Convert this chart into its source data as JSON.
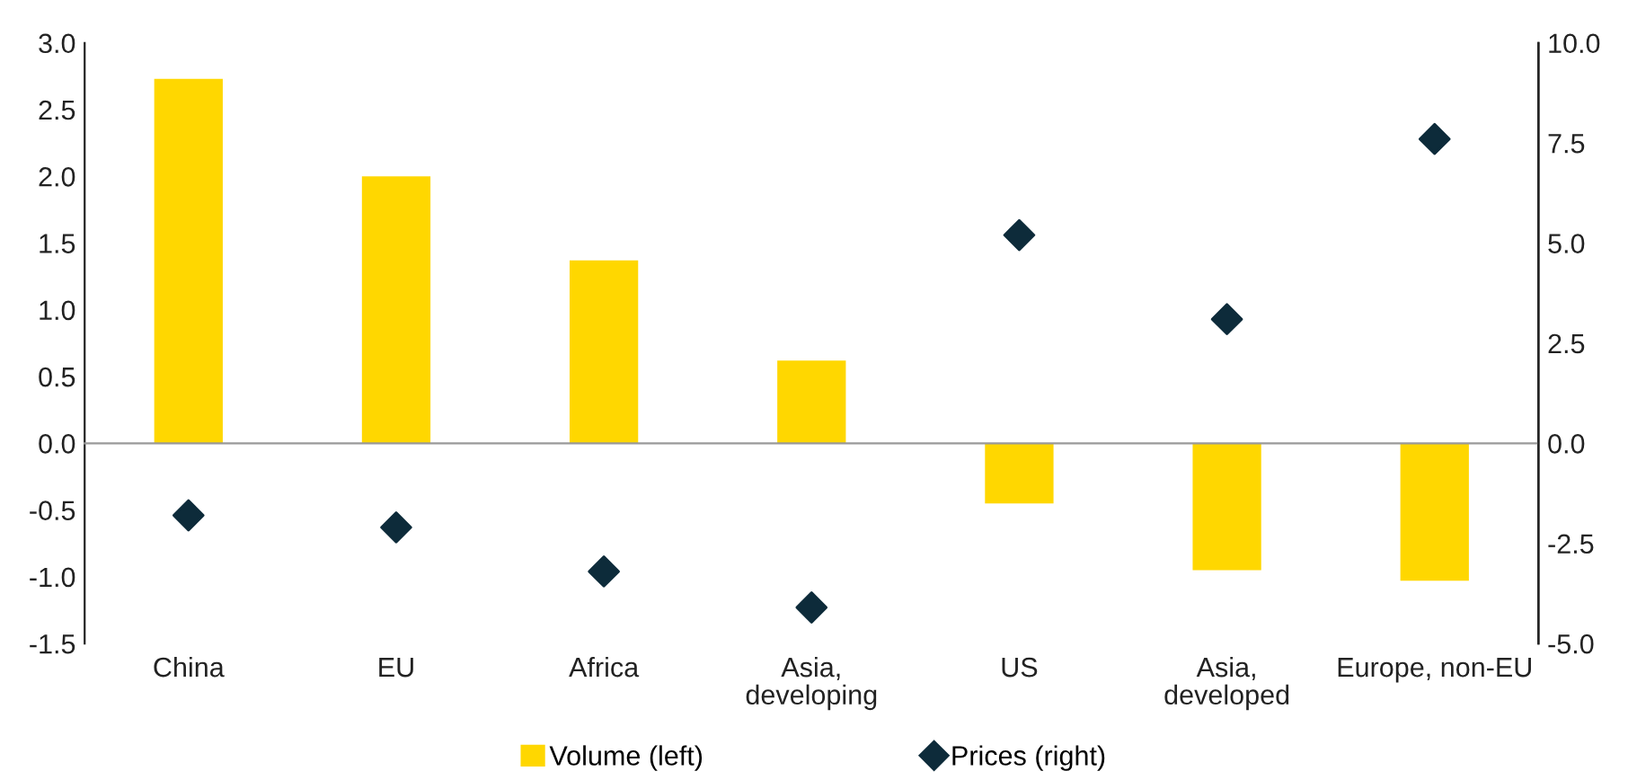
{
  "chart_data": {
    "type": "bar",
    "categories": [
      "China",
      "EU",
      "Africa",
      "Asia,\ndeveloping",
      "US",
      "Asia,\ndeveloped",
      "Europe, non-EU"
    ],
    "series": [
      {
        "name": "Volume (left)",
        "color": "#ffd700",
        "values": [
          2.73,
          2.0,
          1.37,
          0.62,
          -0.45,
          -0.95,
          -1.03
        ]
      },
      {
        "name": "Prices (right)",
        "type": "scatter",
        "axis": "y2",
        "color": "#0d2b3a",
        "marker": "diamond",
        "values": [
          -1.8,
          -2.1,
          -3.2,
          -4.1,
          5.2,
          3.1,
          7.6
        ]
      }
    ],
    "ylim": [
      -1.5,
      3.0
    ],
    "yticks": [
      {
        "value": -1.5,
        "label": "-1.5"
      },
      {
        "value": -1.0,
        "label": "-1.0"
      },
      {
        "value": -0.5,
        "label": "-0.5"
      },
      {
        "value": 0,
        "label": "0.0"
      },
      {
        "value": 0.5,
        "label": "0.5"
      },
      {
        "value": 1.0,
        "label": "1.0"
      },
      {
        "value": 1.5,
        "label": "1.5"
      },
      {
        "value": 2.0,
        "label": "2.0"
      },
      {
        "value": 2.5,
        "label": "2.5"
      },
      {
        "value": 3.0,
        "label": "3.0"
      }
    ],
    "y2lim": [
      -5,
      10
    ],
    "y2ticks": [
      {
        "value": -5,
        "label": "-5.0"
      },
      {
        "value": -2.5,
        "label": "-2.5"
      },
      {
        "value": 0,
        "label": "0.0"
      },
      {
        "value": 2.5,
        "label": "2.5"
      },
      {
        "value": 5,
        "label": "5.0"
      },
      {
        "value": 7.5,
        "label": "7.5"
      },
      {
        "value": 10,
        "label": "10.0"
      }
    ],
    "legend": "bottom"
  }
}
